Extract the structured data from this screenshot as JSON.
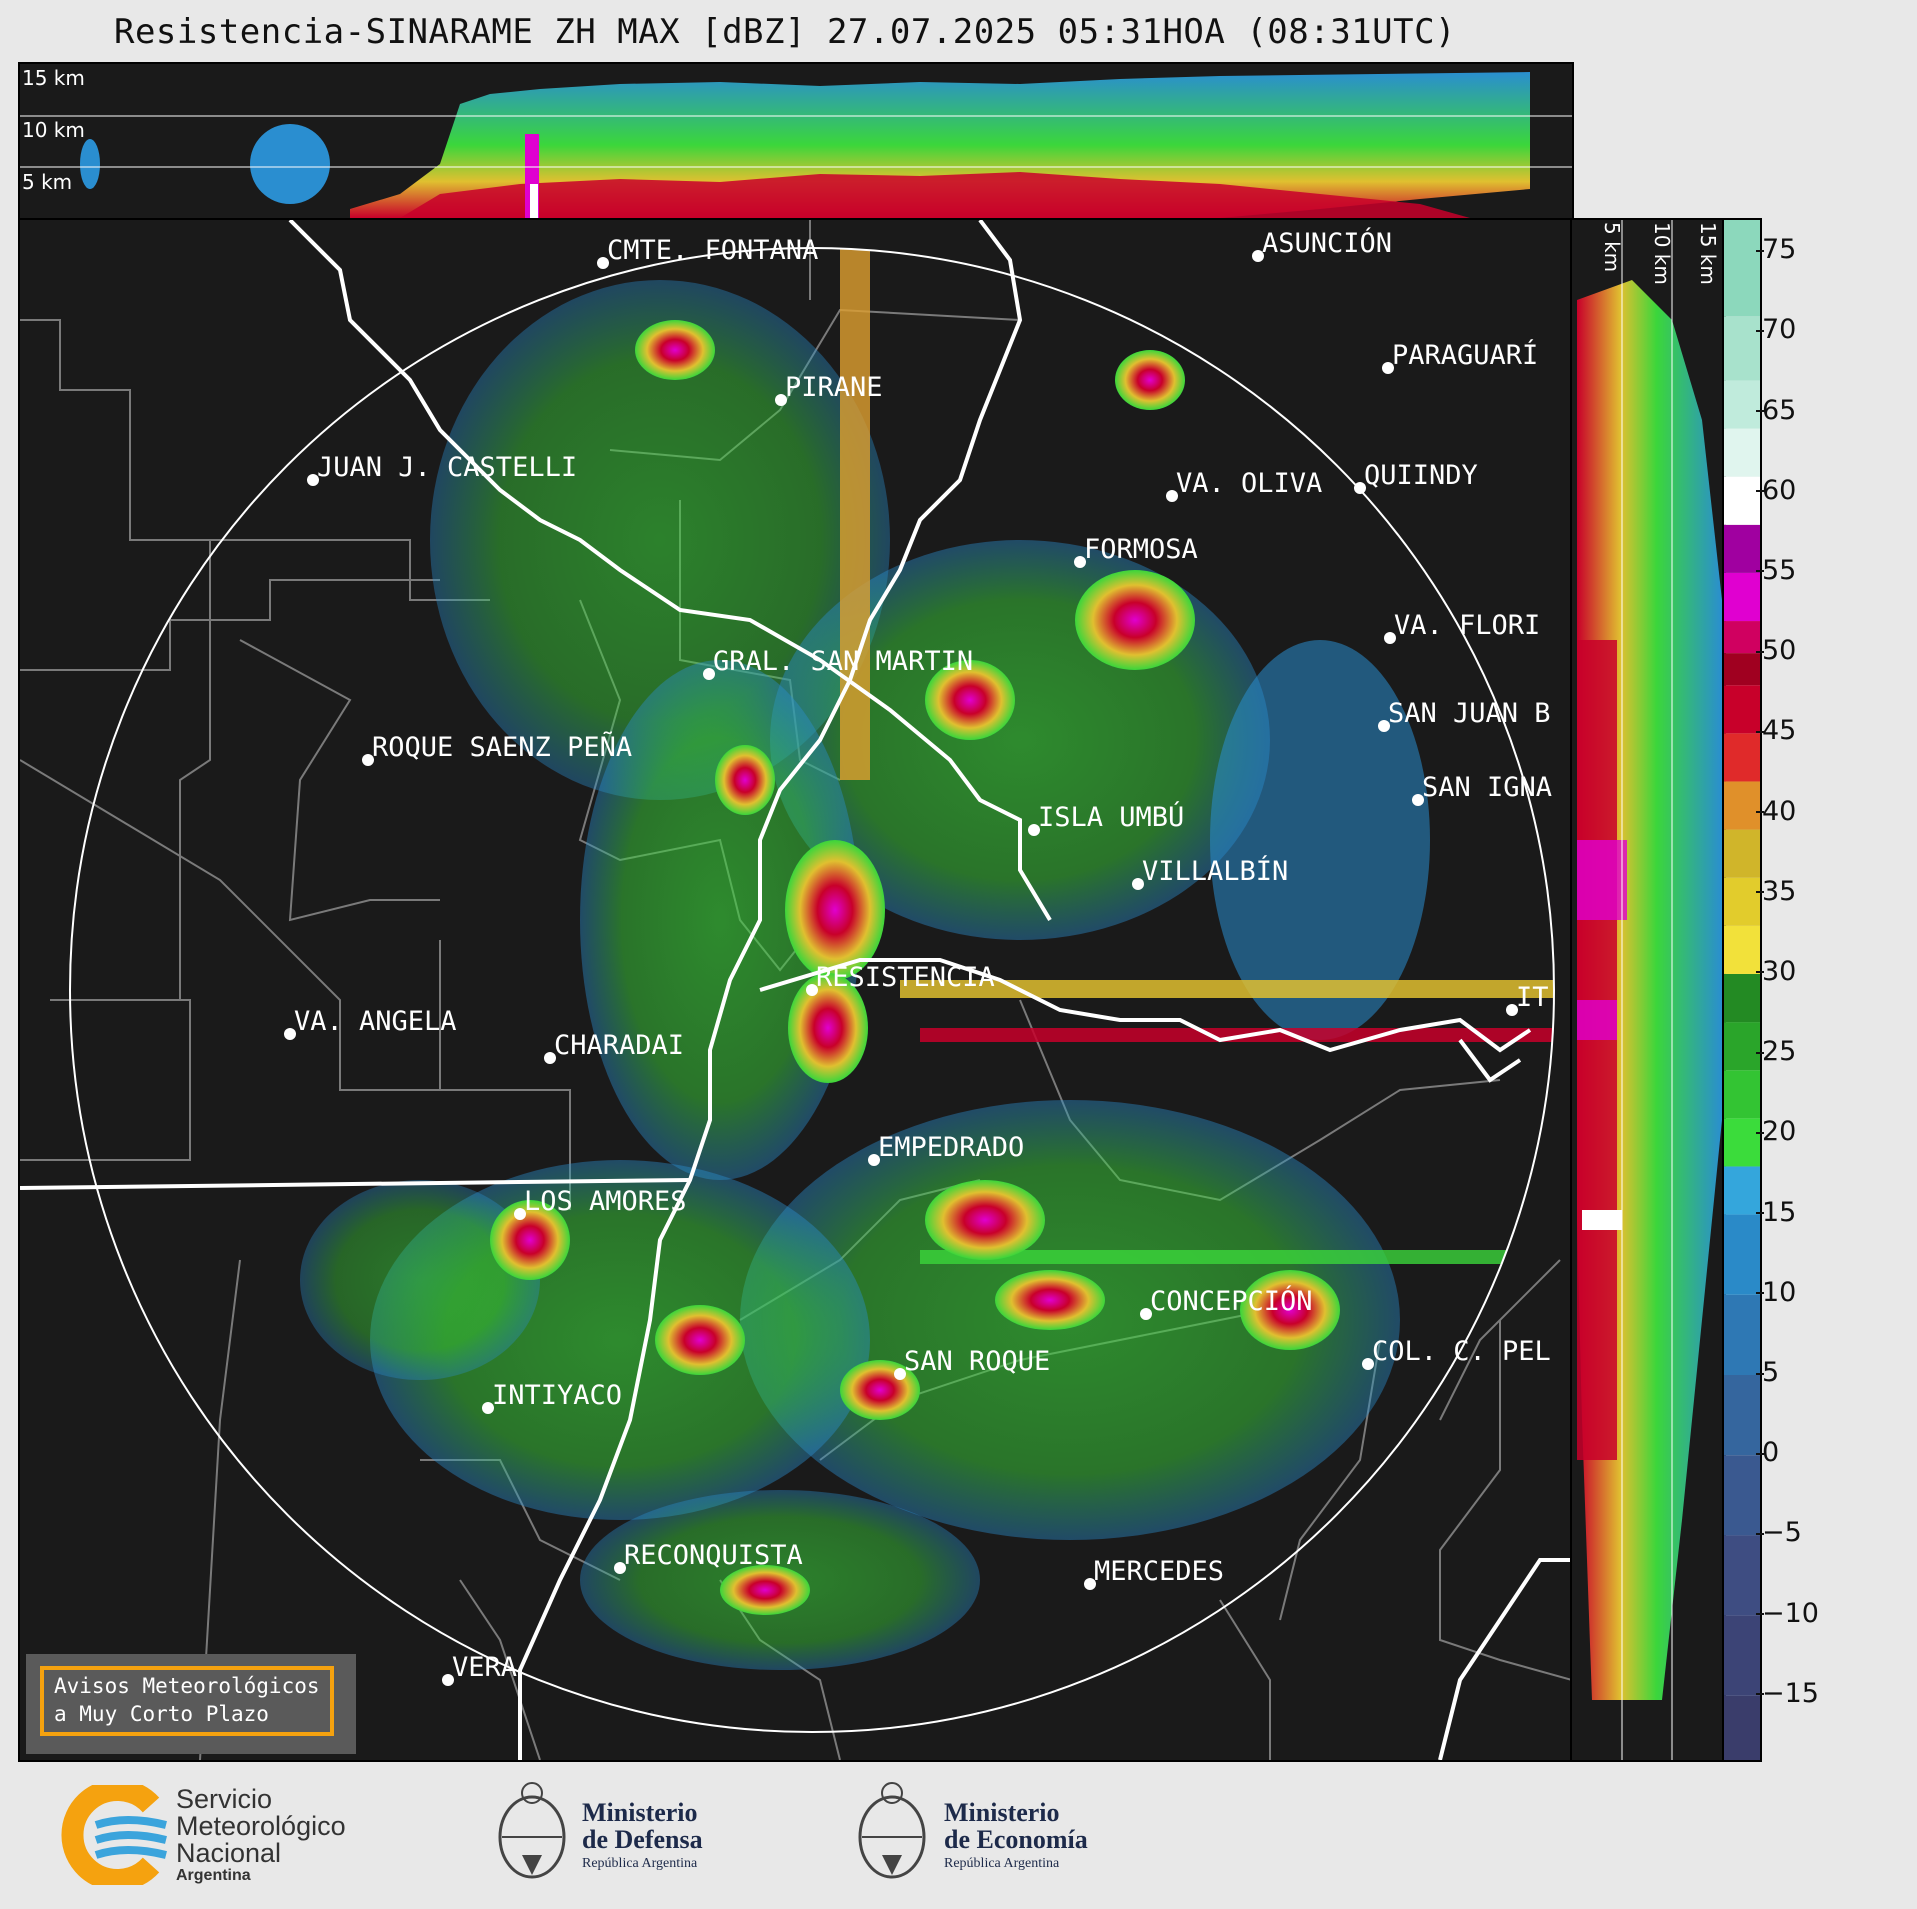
{
  "title": "Resistencia-SINARAME ZH MAX [dBZ] 27.07.2025 05:31HOA (08:31UTC)",
  "top_panel": {
    "height_labels": [
      "15 km",
      "10 km",
      "5 km"
    ]
  },
  "side_panel": {
    "height_labels": [
      "5 km",
      "10 km",
      "15 km"
    ]
  },
  "colorbar": {
    "unit": "dBZ",
    "ticks": [
      "75",
      "70",
      "65",
      "60",
      "55",
      "50",
      "45",
      "40",
      "35",
      "30",
      "25",
      "20",
      "15",
      "10",
      "5",
      "0",
      "−5",
      "−10",
      "−15"
    ],
    "tick_values": [
      75,
      70,
      65,
      60,
      55,
      50,
      45,
      40,
      35,
      30,
      25,
      20,
      15,
      10,
      5,
      0,
      -5,
      -10,
      -15
    ],
    "range": [
      -19,
      77
    ]
  },
  "cities": [
    {
      "name": "CMTE. FONTANA"
    },
    {
      "name": "ASUNCIÓN"
    },
    {
      "name": "PARAGUARÍ"
    },
    {
      "name": "PIRANE"
    },
    {
      "name": "JUAN J. CASTELLI"
    },
    {
      "name": "VA. OLIVA"
    },
    {
      "name": "QUIINDY"
    },
    {
      "name": "FORMOSA"
    },
    {
      "name": "VA. FLORI"
    },
    {
      "name": "GRAL. SAN MARTIN"
    },
    {
      "name": "SAN JUAN B"
    },
    {
      "name": "ROQUE SAENZ PEÑA"
    },
    {
      "name": "SAN IGNA"
    },
    {
      "name": "ISLA UMBÚ"
    },
    {
      "name": "VILLALBÍN"
    },
    {
      "name": "RESISTENCIA"
    },
    {
      "name": "VA. ANGELA"
    },
    {
      "name": "CHARADAI"
    },
    {
      "name": "IT"
    },
    {
      "name": "EMPEDRADO"
    },
    {
      "name": "LOS AMORES"
    },
    {
      "name": "CONCEPCIÓN"
    },
    {
      "name": "SAN ROQUE"
    },
    {
      "name": "COL. C. PEL"
    },
    {
      "name": "INTIYACO"
    },
    {
      "name": "RECONQUISTA"
    },
    {
      "name": "MERCEDES"
    },
    {
      "name": "VERA"
    }
  ],
  "warning_box": {
    "line1": "Avisos Meteorológicos",
    "line2": "a Muy Corto Plazo"
  },
  "logos": {
    "smn": {
      "line1": "Servicio",
      "line2": "Meteorológico",
      "line3": "Nacional",
      "line4": "Argentina"
    },
    "defensa": {
      "line1": "Ministerio",
      "line2": "de Defensa",
      "line3": "República Argentina"
    },
    "economia": {
      "line1": "Ministerio",
      "line2": "de Economía",
      "line3": "República Argentina"
    }
  },
  "colors": {
    "background": "#1a1a1a",
    "range_ring": "#ffffff",
    "smn_orange": "#f5a20f",
    "smn_blue": "#3ba4dc"
  }
}
